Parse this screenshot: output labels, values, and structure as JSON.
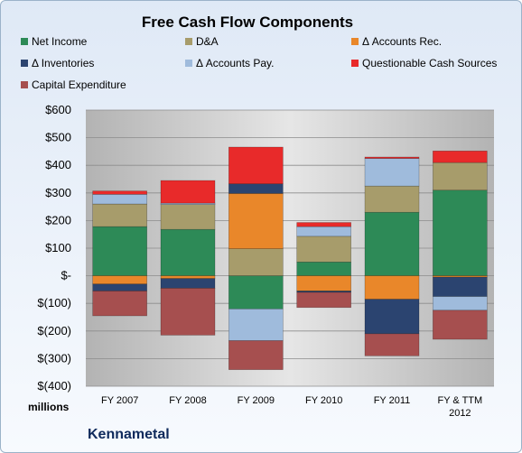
{
  "company": "Kennametal",
  "units": "millions",
  "colors": {
    "net_income": "#2d8a57",
    "da": "#a79c6b",
    "accounts_rec": "#e9872a",
    "inventories": "#2b4470",
    "accounts_pay": "#9fbbdc",
    "questionable": "#e82a2a",
    "capex": "#a64f4f"
  },
  "chart_data": {
    "type": "bar",
    "stacked": true,
    "title": "Free Cash Flow Components",
    "categories": [
      "FY 2007",
      "FY 2008",
      "FY 2009",
      "FY 2010",
      "FY 2011",
      "FY & TTM 2012"
    ],
    "ylim": [
      -400,
      600
    ],
    "yticks": [
      600,
      500,
      400,
      300,
      200,
      100,
      0,
      -100,
      -200,
      -300,
      -400
    ],
    "ytick_labels": [
      "$600",
      "$500",
      "$400",
      "$300",
      "$200",
      "$100",
      "$-",
      "$(100)",
      "$(200)",
      "$(300)",
      "$(400)"
    ],
    "grid": true,
    "legend_position": "top",
    "series": [
      {
        "name": "Net Income",
        "color_key": "net_income",
        "values": [
          178,
          168,
          -120,
          50,
          230,
          310
        ]
      },
      {
        "name": "D&A",
        "color_key": "da",
        "values": [
          82,
          90,
          98,
          93,
          95,
          100
        ]
      },
      {
        "name": "Δ Accounts Rec.",
        "color_key": "accounts_rec",
        "values": [
          -30,
          -10,
          200,
          -55,
          -85,
          -5
        ]
      },
      {
        "name": "Δ Inventories",
        "color_key": "inventories",
        "values": [
          -25,
          -35,
          35,
          -5,
          -125,
          -70
        ]
      },
      {
        "name": "Δ Accounts Pay.",
        "color_key": "accounts_pay",
        "values": [
          35,
          5,
          -115,
          35,
          100,
          -50
        ]
      },
      {
        "name": "Questionable Cash Sources",
        "color_key": "questionable",
        "values": [
          12,
          82,
          133,
          15,
          5,
          42
        ]
      },
      {
        "name": "Capital Expenditure",
        "color_key": "capex",
        "values": [
          -90,
          -170,
          -105,
          -55,
          -80,
          -105
        ]
      }
    ]
  }
}
